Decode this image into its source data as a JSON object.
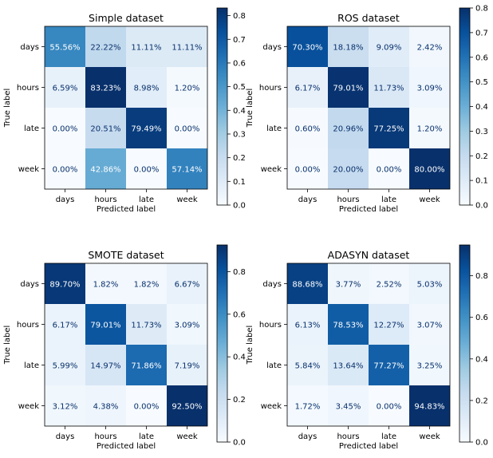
{
  "chart_data": [
    {
      "type": "heatmap",
      "title": "Simple dataset",
      "xlabel": "Predicted label",
      "ylabel": "True label",
      "x_categories": [
        "days",
        "hours",
        "late",
        "week"
      ],
      "y_categories": [
        "days",
        "hours",
        "late",
        "week"
      ],
      "values": [
        [
          55.56,
          22.22,
          11.11,
          11.11
        ],
        [
          6.59,
          83.23,
          8.98,
          1.2
        ],
        [
          0.0,
          20.51,
          79.49,
          0.0
        ],
        [
          0.0,
          42.86,
          0.0,
          57.14
        ]
      ],
      "cell_labels": [
        [
          "55.56%",
          "22.22%",
          "11.11%",
          "11.11%"
        ],
        [
          "6.59%",
          "83.23%",
          "8.98%",
          "1.20%"
        ],
        [
          "0.00%",
          "20.51%",
          "79.49%",
          "0.00%"
        ],
        [
          "0.00%",
          "42.86%",
          "0.00%",
          "57.14%"
        ]
      ],
      "colorbar": {
        "min": 0,
        "max": 0.8323,
        "ticks": [
          0.0,
          0.1,
          0.2,
          0.3,
          0.4,
          0.5,
          0.6,
          0.7,
          0.8
        ],
        "tick_labels": [
          "0.0",
          "0.1",
          "0.2",
          "0.3",
          "0.4",
          "0.5",
          "0.6",
          "0.7",
          "0.8"
        ],
        "colormap": "Blues"
      }
    },
    {
      "type": "heatmap",
      "title": "ROS dataset",
      "xlabel": "Predicted label",
      "ylabel": "True label",
      "x_categories": [
        "days",
        "hours",
        "late",
        "week"
      ],
      "y_categories": [
        "days",
        "hours",
        "late",
        "week"
      ],
      "values": [
        [
          70.3,
          18.18,
          9.09,
          2.42
        ],
        [
          6.17,
          79.01,
          11.73,
          3.09
        ],
        [
          0.6,
          20.96,
          77.25,
          1.2
        ],
        [
          0.0,
          20.0,
          0.0,
          80.0
        ]
      ],
      "cell_labels": [
        [
          "70.30%",
          "18.18%",
          "9.09%",
          "2.42%"
        ],
        [
          "6.17%",
          "79.01%",
          "11.73%",
          "3.09%"
        ],
        [
          "0.60%",
          "20.96%",
          "77.25%",
          "1.20%"
        ],
        [
          "0.00%",
          "20.00%",
          "0.00%",
          "80.00%"
        ]
      ],
      "colorbar": {
        "min": 0,
        "max": 0.8,
        "ticks": [
          0.0,
          0.1,
          0.2,
          0.3,
          0.4,
          0.5,
          0.6,
          0.7,
          0.8
        ],
        "tick_labels": [
          "0.0",
          "0.1",
          "0.2",
          "0.3",
          "0.4",
          "0.5",
          "0.6",
          "0.7",
          "0.8"
        ],
        "colormap": "Blues"
      }
    },
    {
      "type": "heatmap",
      "title": "SMOTE dataset",
      "xlabel": "Predicted label",
      "ylabel": "True label",
      "x_categories": [
        "days",
        "hours",
        "late",
        "week"
      ],
      "y_categories": [
        "days",
        "hours",
        "late",
        "week"
      ],
      "values": [
        [
          89.7,
          1.82,
          1.82,
          6.67
        ],
        [
          6.17,
          79.01,
          11.73,
          3.09
        ],
        [
          5.99,
          14.97,
          71.86,
          7.19
        ],
        [
          3.12,
          4.38,
          0.0,
          92.5
        ]
      ],
      "cell_labels": [
        [
          "89.70%",
          "1.82%",
          "1.82%",
          "6.67%"
        ],
        [
          "6.17%",
          "79.01%",
          "11.73%",
          "3.09%"
        ],
        [
          "5.99%",
          "14.97%",
          "71.86%",
          "7.19%"
        ],
        [
          "3.12%",
          "4.38%",
          "0.00%",
          "92.50%"
        ]
      ],
      "colorbar": {
        "min": 0,
        "max": 0.925,
        "ticks": [
          0.0,
          0.2,
          0.4,
          0.6,
          0.8
        ],
        "tick_labels": [
          "0.0",
          "0.2",
          "0.4",
          "0.6",
          "0.8"
        ],
        "colormap": "Blues"
      }
    },
    {
      "type": "heatmap",
      "title": "ADASYN dataset",
      "xlabel": "Predicted label",
      "ylabel": "True label",
      "x_categories": [
        "days",
        "hours",
        "late",
        "week"
      ],
      "y_categories": [
        "days",
        "hours",
        "late",
        "week"
      ],
      "values": [
        [
          88.68,
          3.77,
          2.52,
          5.03
        ],
        [
          6.13,
          78.53,
          12.27,
          3.07
        ],
        [
          5.84,
          13.64,
          77.27,
          3.25
        ],
        [
          1.72,
          3.45,
          0.0,
          94.83
        ]
      ],
      "cell_labels": [
        [
          "88.68%",
          "3.77%",
          "2.52%",
          "5.03%"
        ],
        [
          "6.13%",
          "78.53%",
          "12.27%",
          "3.07%"
        ],
        [
          "5.84%",
          "13.64%",
          "77.27%",
          "3.25%"
        ],
        [
          "1.72%",
          "3.45%",
          "0.00%",
          "94.83%"
        ]
      ],
      "colorbar": {
        "min": 0,
        "max": 0.9483,
        "ticks": [
          0.0,
          0.2,
          0.4,
          0.6,
          0.8
        ],
        "tick_labels": [
          "0.0",
          "0.2",
          "0.4",
          "0.6",
          "0.8"
        ],
        "colormap": "Blues"
      }
    }
  ]
}
